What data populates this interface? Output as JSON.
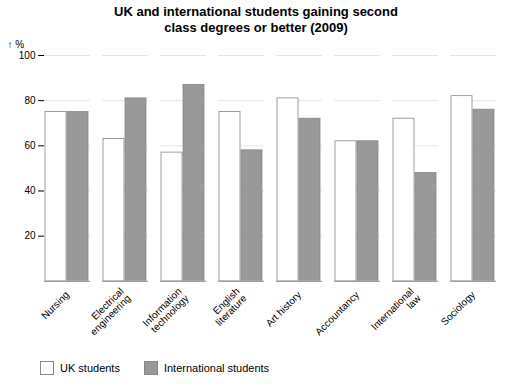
{
  "chart_data": {
    "type": "bar",
    "title": "UK and international students gaining second\nclass degrees or better (2009)",
    "ylabel": "%",
    "categories": [
      "Nursing",
      "Electrical\nengineering",
      "Information\ntechnology",
      "English\nliterature",
      "Art history",
      "Accountancy",
      "International\nlaw",
      "Sociology"
    ],
    "series": [
      {
        "name": "UK students",
        "color": "#ffffff",
        "values": [
          75,
          63,
          57,
          75,
          81,
          62,
          72,
          82
        ]
      },
      {
        "name": "International students",
        "color": "#999999",
        "values": [
          75,
          81,
          87,
          58,
          72,
          62,
          48,
          76
        ]
      }
    ],
    "ylim": [
      0,
      100
    ],
    "yticks": [
      20,
      40,
      60,
      80,
      100
    ],
    "grid": true,
    "legend": "bottom"
  }
}
